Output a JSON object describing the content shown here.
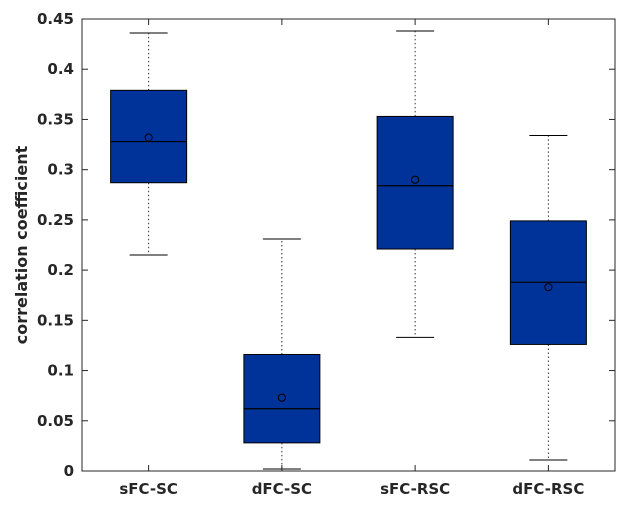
{
  "chart_data": {
    "type": "box",
    "title": "",
    "xlabel": "",
    "ylabel": "correlation coefficient",
    "ylim": [
      0,
      0.45
    ],
    "yticks": [
      0,
      0.05,
      0.1,
      0.15,
      0.2,
      0.25,
      0.3,
      0.35,
      0.4,
      0.45
    ],
    "ytick_labels": [
      "0",
      "0.05",
      "0.1",
      "0.15",
      "0.2",
      "0.25",
      "0.3",
      "0.35",
      "0.4",
      "0.45"
    ],
    "grid": false,
    "box_color": "#00339a",
    "categories": [
      "sFC-SC",
      "dFC-SC",
      "sFC-RSC",
      "dFC-RSC"
    ],
    "boxes": [
      {
        "whisker_low": 0.215,
        "q1": 0.287,
        "median": 0.328,
        "q3": 0.379,
        "whisker_high": 0.436,
        "mean": 0.332
      },
      {
        "whisker_low": 0.002,
        "q1": 0.028,
        "median": 0.062,
        "q3": 0.116,
        "whisker_high": 0.231,
        "mean": 0.073
      },
      {
        "whisker_low": 0.133,
        "q1": 0.221,
        "median": 0.284,
        "q3": 0.353,
        "whisker_high": 0.438,
        "mean": 0.29
      },
      {
        "whisker_low": 0.011,
        "q1": 0.126,
        "median": 0.188,
        "q3": 0.249,
        "whisker_high": 0.334,
        "mean": 0.183
      }
    ]
  }
}
